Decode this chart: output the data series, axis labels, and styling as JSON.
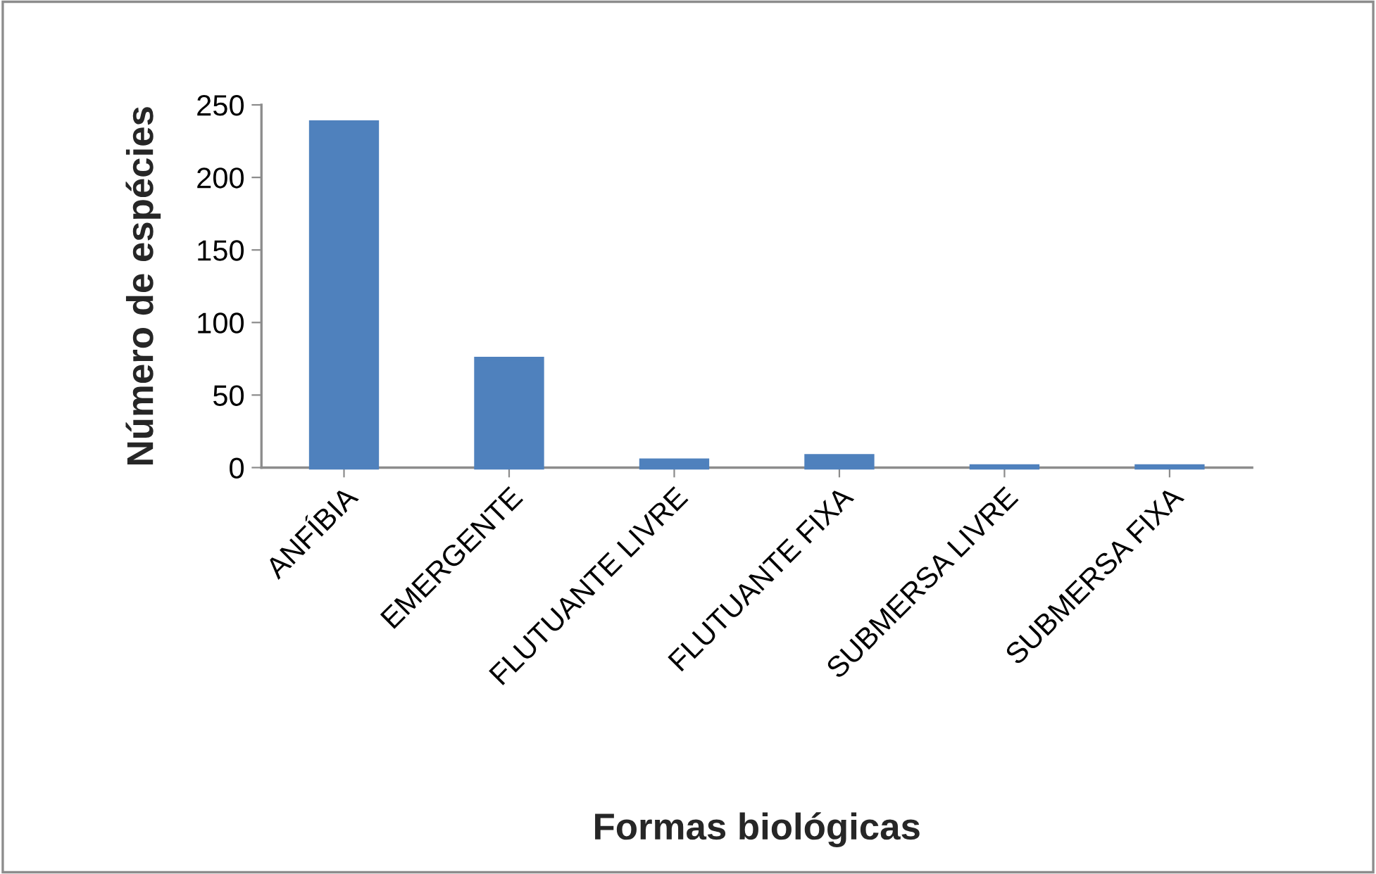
{
  "chart_data": {
    "type": "bar",
    "xlabel": "Formas biológicas",
    "ylabel": "Número de espécies",
    "categories": [
      "ANFÍBIA",
      "EMERGENTE",
      "FLUTUANTE LIVRE",
      "FLUTUANTE FIXA",
      "SUBMERSA LIVRE",
      "SUBMERSA FIXA"
    ],
    "values": [
      238,
      75,
      5,
      8,
      1,
      1
    ],
    "color": "#4f81bd",
    "ylim": [
      0,
      250
    ],
    "yticks": [
      0,
      50,
      100,
      150,
      200,
      250
    ],
    "grid": false,
    "legend": false
  }
}
